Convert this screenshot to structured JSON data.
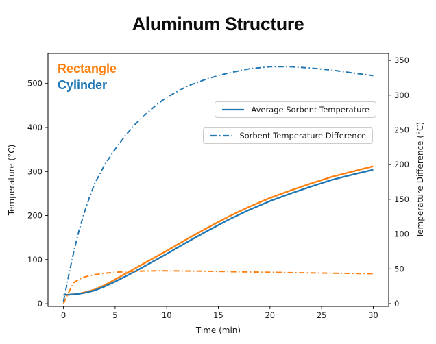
{
  "title": "Aluminum Structure",
  "structure_labels": [
    {
      "text": "Rectangle",
      "color": "#ff7f0e"
    },
    {
      "text": "Cylinder",
      "color": "#1f77b4"
    }
  ],
  "legends": [
    {
      "label": "Average Sorbent Temperature",
      "line_style": "solid",
      "line_color": "#1f77b4"
    },
    {
      "label": "Sorbent Temperature Difference",
      "line_style": "dashdot",
      "line_color": "#1f77b4"
    }
  ],
  "chart_data": {
    "type": "line",
    "title": "Aluminum Structure",
    "xlabel": "Time (min)",
    "ylabel_left": "Temperature (°C)",
    "ylabel_right": "Temperature Difference (°C)",
    "xlim": [
      -1.5,
      31.5
    ],
    "ylim_left": [
      -6,
      568
    ],
    "ylim_right": [
      -4,
      360
    ],
    "xticks": [
      0,
      5,
      10,
      15,
      20,
      25,
      30
    ],
    "yticks_left": [
      0,
      100,
      200,
      300,
      400,
      500
    ],
    "yticks_right": [
      0,
      50,
      100,
      150,
      200,
      250,
      300,
      350
    ],
    "grid": false,
    "legend_position": "upper right (two stacked boxes)",
    "x": [
      0,
      0.5,
      1,
      1.5,
      2,
      2.5,
      3,
      4,
      5,
      6,
      7,
      8,
      9,
      10,
      12,
      14,
      16,
      18,
      20,
      22,
      24,
      26,
      28,
      30
    ],
    "series": [
      {
        "name": "Rectangle Average Sorbent Temperature",
        "axis": "left",
        "color": "#ff7f0e",
        "style": "solid",
        "values": [
          20,
          20.5,
          21.5,
          23,
          25.5,
          28.5,
          32,
          42,
          55,
          68,
          81,
          94,
          107,
          120,
          147,
          173,
          198,
          220,
          240,
          257,
          273,
          288,
          300,
          312
        ]
      },
      {
        "name": "Cylinder Average Sorbent Temperature",
        "axis": "left",
        "color": "#1f77b4",
        "style": "solid",
        "values": [
          20,
          20.3,
          21,
          22.3,
          24.3,
          27,
          30,
          39,
          50,
          62,
          74,
          87,
          100,
          113,
          140,
          166,
          191,
          213,
          233,
          250,
          266,
          281,
          293,
          304
        ]
      },
      {
        "name": "Rectangle Sorbent Temperature Difference",
        "axis": "right",
        "color": "#ff7f0e",
        "style": "dashdot",
        "values": [
          0,
          16,
          30,
          35,
          38,
          40,
          41.5,
          43.5,
          45,
          45.8,
          46.4,
          46.8,
          47,
          47,
          46.8,
          46.4,
          45.9,
          45.4,
          44.9,
          44.4,
          44,
          43.6,
          43.3,
          43
        ]
      },
      {
        "name": "Cylinder Sorbent Temperature Difference",
        "axis": "right",
        "color": "#1f77b4",
        "style": "dashdot",
        "values": [
          3,
          40,
          75,
          105,
          130,
          152,
          172,
          200,
          222,
          242,
          259,
          273,
          286,
          297,
          313,
          324,
          332,
          338,
          341,
          341,
          339,
          336,
          332,
          328
        ]
      }
    ]
  }
}
